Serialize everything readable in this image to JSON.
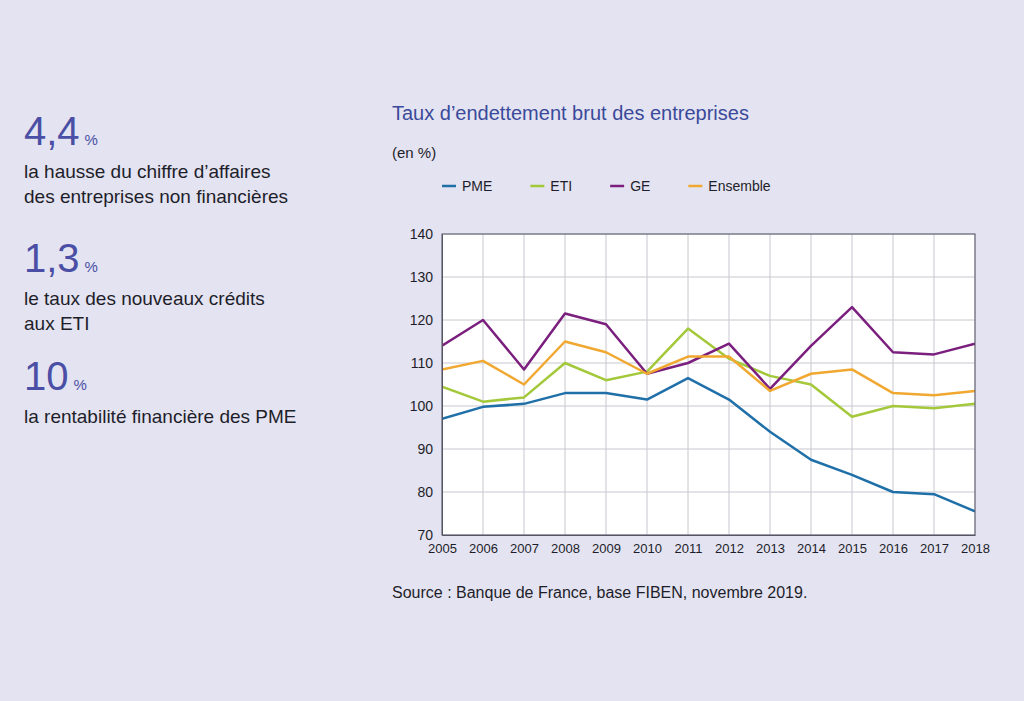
{
  "highlights": [
    {
      "value": "4,4",
      "unit": "%",
      "text": [
        "la hausse du chiffre d’affaires",
        "des entreprises non financières"
      ]
    },
    {
      "value": "1,3",
      "unit": "%",
      "text": [
        "le taux des nouveaux crédits",
        "aux ETI"
      ]
    },
    {
      "value": "10",
      "unit": "%",
      "text": [
        "la rentabilité financière des PME"
      ]
    }
  ],
  "chart_data": {
    "type": "line",
    "title": "Taux d’endettement brut des entreprises",
    "subtitle": "(en %)",
    "source": "Source : Banque de France, base FIBEN, novembre 2019.",
    "x": [
      2005,
      2006,
      2007,
      2008,
      2009,
      2010,
      2011,
      2012,
      2013,
      2014,
      2015,
      2016,
      2017,
      2018
    ],
    "xlim": [
      2005,
      2018
    ],
    "xticks": [
      2005,
      2006,
      2007,
      2008,
      2009,
      2010,
      2011,
      2012,
      2013,
      2014,
      2015,
      2016,
      2017,
      2018
    ],
    "ylim": [
      70,
      140
    ],
    "yticks": [
      70,
      80,
      90,
      100,
      110,
      120,
      130,
      140
    ],
    "grid": true,
    "legend": "top",
    "series": [
      {
        "name": "PME",
        "color": "#1f6fa8",
        "values": [
          97,
          99.8,
          100.5,
          103,
          103,
          101.5,
          106.5,
          101.5,
          94,
          87.5,
          84,
          80,
          79.5,
          75.5
        ]
      },
      {
        "name": "ETI",
        "color": "#a3c83a",
        "values": [
          104.5,
          101,
          102,
          110,
          106,
          108,
          118,
          111,
          107,
          105,
          97.5,
          100,
          99.5,
          100.5
        ]
      },
      {
        "name": "GE",
        "color": "#7b1f7e",
        "values": [
          114,
          120,
          108.5,
          121.5,
          119,
          107.5,
          110,
          114.5,
          104,
          114,
          123,
          112.5,
          112,
          114.5
        ]
      },
      {
        "name": "Ensemble",
        "color": "#f0a830",
        "values": [
          108.5,
          110.5,
          105,
          115,
          112.5,
          107.5,
          111.5,
          111.5,
          103.5,
          107.5,
          108.5,
          103,
          102.5,
          103.5
        ]
      }
    ]
  }
}
